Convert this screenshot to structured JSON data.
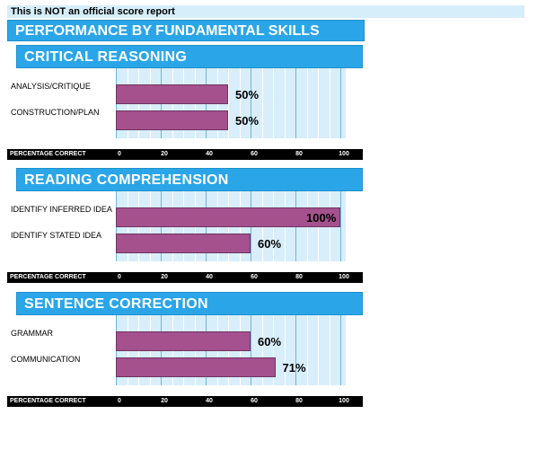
{
  "disclaimer": "This is NOT an official score report",
  "report_title": "PERFORMANCE BY FUNDAMENTAL SKILLS",
  "axis_label": "PERCENTAGE CORRECT",
  "ticks": [
    "0",
    "20",
    "40",
    "60",
    "80",
    "100"
  ],
  "colors": {
    "bar": "#a5518e",
    "header": "#2aa6e8",
    "plot_bg": "#d8eefa",
    "axis_bg": "#000000"
  },
  "chart_data": [
    {
      "type": "bar",
      "orientation": "horizontal",
      "title": "CRITICAL REASONING",
      "categories": [
        "ANALYSIS/CRITIQUE",
        "CONSTRUCTION/PLAN"
      ],
      "values": [
        50,
        50
      ],
      "value_labels": [
        "50%",
        "50%"
      ],
      "xlabel": "PERCENTAGE CORRECT",
      "xlim": [
        0,
        100
      ]
    },
    {
      "type": "bar",
      "orientation": "horizontal",
      "title": "READING COMPREHENSION",
      "categories": [
        "IDENTIFY INFERRED IDEA",
        "IDENTIFY STATED IDEA"
      ],
      "values": [
        100,
        60
      ],
      "value_labels": [
        "100%",
        "60%"
      ],
      "xlabel": "PERCENTAGE CORRECT",
      "xlim": [
        0,
        100
      ]
    },
    {
      "type": "bar",
      "orientation": "horizontal",
      "title": "SENTENCE CORRECTION",
      "categories": [
        "GRAMMAR",
        "COMMUNICATION"
      ],
      "values": [
        60,
        71
      ],
      "value_labels": [
        "60%",
        "71%"
      ],
      "xlabel": "PERCENTAGE CORRECT",
      "xlim": [
        0,
        100
      ]
    }
  ]
}
